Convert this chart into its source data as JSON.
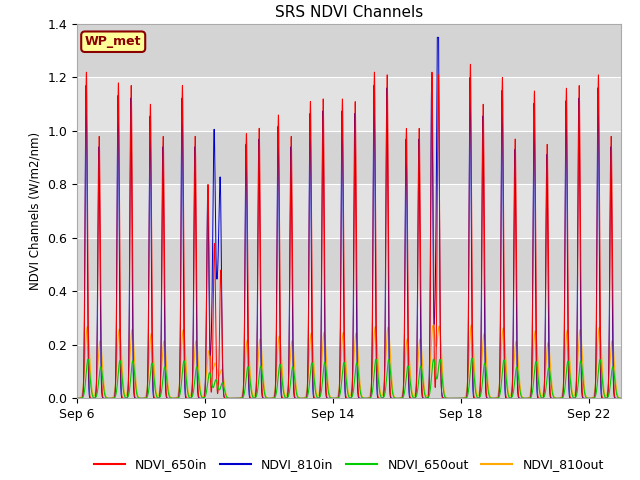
{
  "title": "SRS NDVI Channels",
  "ylabel": "NDVI Channels (W/m2/nm)",
  "ylim": [
    0.0,
    1.4
  ],
  "background_color": "#ffffff",
  "plot_bg_color": "#d8d8d8",
  "grid_bg_alternating": [
    "#d8d8d8",
    "#e8e8e8"
  ],
  "legend_entries": [
    "NDVI_650in",
    "NDVI_810in",
    "NDVI_650out",
    "NDVI_810out"
  ],
  "legend_colors": [
    "#ff0000",
    "#0000cc",
    "#00cc00",
    "#ffaa00"
  ],
  "annotation_text": "WP_met",
  "annotation_bg": "#ffff99",
  "annotation_border": "#8B0000",
  "x_tick_labels": [
    "Sep 6",
    "Sep 10",
    "Sep 14",
    "Sep 18",
    "Sep 22"
  ],
  "x_tick_positions": [
    0,
    4,
    8,
    12,
    16
  ],
  "num_days": 17,
  "peaks_650in": [
    [
      0.3,
      1.22
    ],
    [
      0.7,
      0.98
    ],
    [
      1.3,
      1.18
    ],
    [
      1.7,
      1.17
    ],
    [
      2.3,
      1.1
    ],
    [
      2.7,
      0.98
    ],
    [
      3.3,
      1.17
    ],
    [
      3.7,
      0.98
    ],
    [
      4.1,
      0.8
    ],
    [
      4.3,
      0.58
    ],
    [
      4.5,
      0.48
    ],
    [
      5.3,
      0.99
    ],
    [
      5.7,
      1.01
    ],
    [
      6.3,
      1.06
    ],
    [
      6.7,
      0.98
    ],
    [
      7.3,
      1.11
    ],
    [
      7.7,
      1.12
    ],
    [
      8.3,
      1.12
    ],
    [
      8.7,
      1.11
    ],
    [
      9.3,
      1.22
    ],
    [
      9.7,
      1.21
    ],
    [
      10.3,
      1.01
    ],
    [
      10.7,
      1.01
    ],
    [
      11.1,
      1.22
    ],
    [
      11.3,
      1.21
    ],
    [
      12.3,
      1.25
    ],
    [
      12.7,
      1.1
    ],
    [
      13.3,
      1.2
    ],
    [
      13.7,
      0.97
    ],
    [
      14.3,
      1.15
    ],
    [
      14.7,
      0.95
    ],
    [
      15.3,
      1.16
    ],
    [
      15.7,
      1.17
    ],
    [
      16.3,
      1.21
    ],
    [
      16.7,
      0.98
    ]
  ],
  "sep10_blue_blob": [
    4.2,
    4.6
  ],
  "sep18_blue_blob": [
    11.15,
    11.4
  ]
}
